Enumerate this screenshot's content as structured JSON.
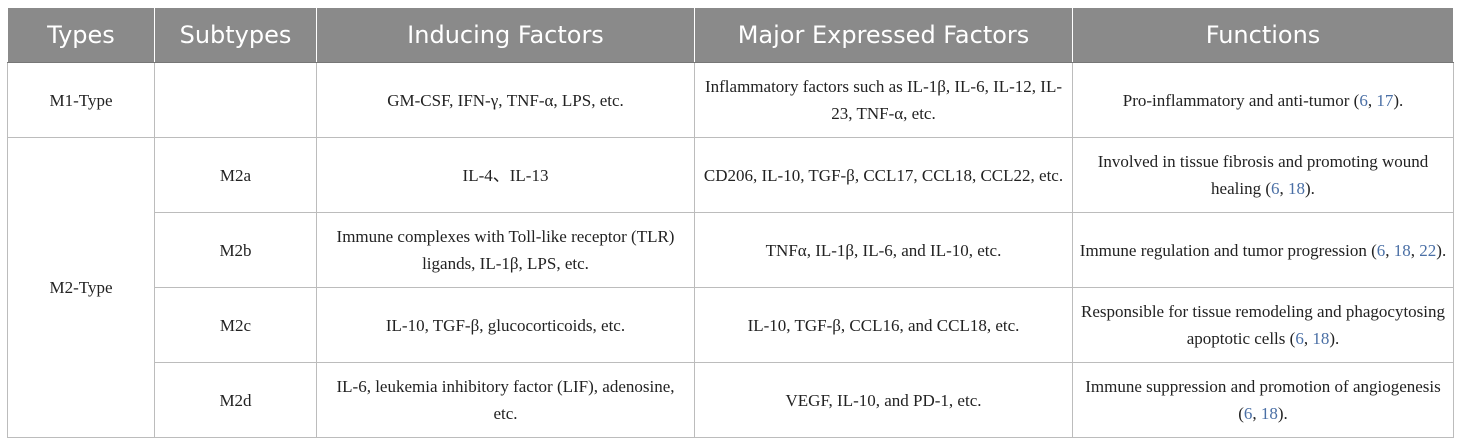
{
  "headers": [
    "Types",
    "Subtypes",
    "Inducing Factors",
    "Major Expressed Factors",
    "Functions"
  ],
  "rows": [
    {
      "type": "M1-Type",
      "subtype": "",
      "inducing": "GM-CSF, IFN-γ, TNF-α, LPS, etc.",
      "expressed": "Inflammatory factors such as IL-1β, IL-6, IL-12, IL-23, TNF-α, etc.",
      "function": "Pro-inflammatory and anti-tumor",
      "refs": [
        "6",
        "17"
      ]
    },
    {
      "type": "M2-Type",
      "subtype": "M2a",
      "inducing": "IL-4、IL-13",
      "expressed": "CD206, IL-10, TGF-β, CCL17, CCL18, CCL22, etc.",
      "function": "Involved in tissue fibrosis and promoting wound healing",
      "refs": [
        "6",
        "18"
      ]
    },
    {
      "type": "M2-Type",
      "subtype": "M2b",
      "inducing": "Immune complexes with Toll-like receptor (TLR) ligands, IL-1β, LPS, etc.",
      "expressed": "TNFα, IL-1β, IL-6, and IL-10, etc.",
      "function": "Immune regulation and tumor progression",
      "refs": [
        "6",
        "18",
        "22"
      ]
    },
    {
      "type": "M2-Type",
      "subtype": "M2c",
      "inducing": "IL-10, TGF-β, glucocorticoids, etc.",
      "expressed": "IL-10, TGF-β, CCL16, and CCL18, etc.",
      "function": "Responsible for tissue remodeling and phagocytosing apoptotic cells",
      "refs": [
        "6",
        "18"
      ]
    },
    {
      "type": "M2-Type",
      "subtype": "M2d",
      "inducing": "IL-6, leukemia inhibitory factor (LIF), adenosine, etc.",
      "expressed": "VEGF, IL-10, and PD-1, etc.",
      "function": "Immune suppression and promotion of angiogenesis",
      "refs": [
        "6",
        "18"
      ]
    }
  ]
}
